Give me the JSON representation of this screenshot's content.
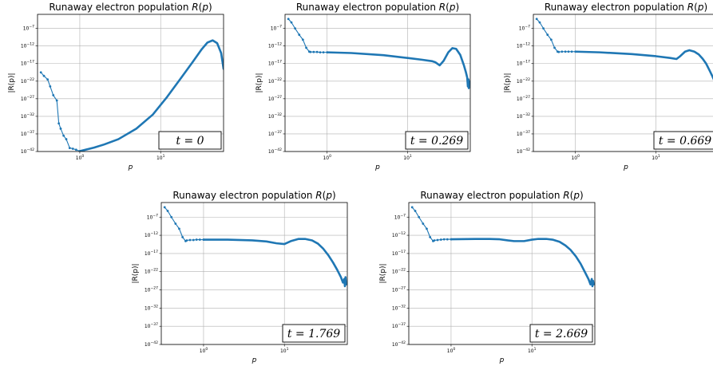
{
  "chart_data": [
    {
      "type": "line",
      "title": "Runaway electron population R(p)",
      "xlabel": "p",
      "ylabel": "|R(p)|",
      "xscale": "log",
      "yscale": "log",
      "xlim": [
        0.3,
        60
      ],
      "ylim": [
        1e-42,
        0.001
      ],
      "x_ticks": [
        "10^0",
        "10^1"
      ],
      "y_ticks": [
        "10^-7",
        "10^-12",
        "10^-17",
        "10^-22",
        "10^-27",
        "10^-32",
        "10^-37",
        "10^-42"
      ],
      "grid": true,
      "annotation": "t = 0",
      "color": "#1f77b4",
      "series": [
        {
          "x": [
            0.33,
            0.36,
            0.4,
            0.43,
            0.47,
            0.52,
            0.55,
            0.58,
            0.63,
            0.68,
            0.75,
            0.82,
            0.9,
            1.0
          ],
          "log10_y": [
            -19.5,
            -20.5,
            -21.5,
            -23.5,
            -26,
            -27.5,
            -34,
            -35.5,
            -37.5,
            -38.5,
            -41,
            -41.2,
            -41.5,
            -41.9
          ]
        },
        {
          "x": [
            1.0,
            1.5,
            2,
            3,
            5,
            8,
            12,
            18,
            25,
            32,
            38,
            44,
            50,
            56,
            60
          ],
          "log10_y": [
            -41.9,
            -40.9,
            -40,
            -38.5,
            -35.5,
            -31.5,
            -26.5,
            -21,
            -16.5,
            -13,
            -11,
            -10.4,
            -11.2,
            -14,
            -18.5
          ]
        }
      ]
    },
    {
      "type": "line",
      "title": "Runaway electron population R(p)",
      "xlabel": "p",
      "ylabel": "|R(p)|",
      "xscale": "log",
      "yscale": "log",
      "xlim": [
        0.3,
        60
      ],
      "ylim": [
        1e-42,
        0.001
      ],
      "x_ticks": [
        "10^0",
        "10^1"
      ],
      "y_ticks": [
        "10^-7",
        "10^-12",
        "10^-17",
        "10^-22",
        "10^-27",
        "10^-32",
        "10^-37",
        "10^-42"
      ],
      "grid": true,
      "annotation": "t = 0.269",
      "color": "#1f77b4",
      "series": [
        {
          "x": [
            0.33,
            0.36,
            0.4,
            0.45,
            0.5,
            0.55,
            0.6,
            0.62,
            0.68,
            0.75,
            0.82,
            0.9,
            1.0
          ],
          "log10_y": [
            -4.3,
            -5.3,
            -7,
            -8.8,
            -10.2,
            -12.5,
            -13.6,
            -13.7,
            -13.7,
            -13.7,
            -13.8,
            -13.8,
            -13.8
          ]
        },
        {
          "x": [
            1.0,
            2,
            5,
            10,
            15,
            20,
            22,
            25,
            28,
            32,
            36,
            40,
            45,
            50,
            53,
            55,
            56,
            57,
            57.5,
            58
          ],
          "log10_y": [
            -13.8,
            -14,
            -14.6,
            -15.4,
            -15.9,
            -16.3,
            -16.6,
            -17.5,
            -16.2,
            -13.8,
            -12.6,
            -12.8,
            -14.5,
            -17.5,
            -19.5,
            -21,
            -23.5,
            -21.5,
            -24,
            -22
          ]
        }
      ]
    },
    {
      "type": "line",
      "title": "Runaway electron population R(p)",
      "xlabel": "p",
      "ylabel": "|R(p)|",
      "xscale": "log",
      "yscale": "log",
      "xlim": [
        0.3,
        60
      ],
      "ylim": [
        1e-42,
        0.001
      ],
      "x_ticks": [
        "10^0",
        "10^1"
      ],
      "y_ticks": [
        "10^-7",
        "10^-12",
        "10^-17",
        "10^-22",
        "10^-27",
        "10^-32",
        "10^-37",
        "10^-42"
      ],
      "grid": true,
      "annotation": "t = 0.669",
      "color": "#1f77b4",
      "series": [
        {
          "x": [
            0.33,
            0.36,
            0.4,
            0.45,
            0.5,
            0.55,
            0.6,
            0.62,
            0.68,
            0.75,
            0.82,
            0.9,
            1.0
          ],
          "log10_y": [
            -4.3,
            -5.3,
            -7,
            -8.8,
            -10.2,
            -12.5,
            -13.6,
            -13.7,
            -13.6,
            -13.6,
            -13.6,
            -13.6,
            -13.6
          ]
        },
        {
          "x": [
            1.0,
            2,
            5,
            10,
            15,
            18,
            20,
            23,
            26,
            30,
            34,
            38,
            42,
            46,
            50,
            53,
            55,
            56,
            57,
            58
          ],
          "log10_y": [
            -13.6,
            -13.8,
            -14.3,
            -14.9,
            -15.4,
            -15.7,
            -14.9,
            -13.6,
            -13.2,
            -13.6,
            -14.4,
            -15.6,
            -17,
            -18.8,
            -20.5,
            -21.8,
            -23,
            -24.5,
            -22.5,
            -23.5
          ]
        }
      ]
    },
    {
      "type": "line",
      "title": "Runaway electron population R(p)",
      "xlabel": "p",
      "ylabel": "|R(p)|",
      "xscale": "log",
      "yscale": "log",
      "xlim": [
        0.3,
        60
      ],
      "ylim": [
        1e-42,
        0.001
      ],
      "x_ticks": [
        "10^0",
        "10^1"
      ],
      "y_ticks": [
        "10^-7",
        "10^-12",
        "10^-17",
        "10^-22",
        "10^-27",
        "10^-32",
        "10^-37",
        "10^-42"
      ],
      "grid": true,
      "annotation": "t = 1.769",
      "color": "#1f77b4",
      "series": [
        {
          "x": [
            0.33,
            0.36,
            0.4,
            0.45,
            0.5,
            0.55,
            0.6,
            0.62,
            0.68,
            0.75,
            0.82,
            0.9,
            1.0
          ],
          "log10_y": [
            -4.3,
            -5.3,
            -7,
            -8.8,
            -10.2,
            -12.5,
            -13.6,
            -13.4,
            -13.3,
            -13.3,
            -13.2,
            -13.2,
            -13.2
          ]
        },
        {
          "x": [
            1.0,
            2,
            4,
            6,
            8,
            10,
            12,
            15,
            18,
            22,
            26,
            30,
            35,
            40,
            45,
            50,
            53,
            55,
            56,
            57,
            58
          ],
          "log10_y": [
            -13.2,
            -13.2,
            -13.4,
            -13.7,
            -14.2,
            -14.4,
            -13.6,
            -13,
            -13,
            -13.4,
            -14.3,
            -15.6,
            -17.5,
            -19.5,
            -21.5,
            -23.5,
            -25,
            -24,
            -26,
            -23.5,
            -25.5
          ]
        }
      ]
    },
    {
      "type": "line",
      "title": "Runaway electron population R(p)",
      "xlabel": "p",
      "ylabel": "|R(p)|",
      "xscale": "log",
      "yscale": "log",
      "xlim": [
        0.3,
        60
      ],
      "ylim": [
        1e-42,
        0.001
      ],
      "x_ticks": [
        "10^0",
        "10^1"
      ],
      "y_ticks": [
        "10^-7",
        "10^-12",
        "10^-17",
        "10^-22",
        "10^-27",
        "10^-32",
        "10^-37",
        "10^-42"
      ],
      "grid": true,
      "annotation": "t = 2.669",
      "color": "#1f77b4",
      "series": [
        {
          "x": [
            0.33,
            0.36,
            0.4,
            0.45,
            0.5,
            0.55,
            0.6,
            0.62,
            0.68,
            0.75,
            0.82,
            0.9,
            1.0
          ],
          "log10_y": [
            -4.3,
            -5.3,
            -7,
            -8.8,
            -10.2,
            -12.5,
            -13.6,
            -13.4,
            -13.3,
            -13.2,
            -13.1,
            -13.1,
            -13.1
          ]
        },
        {
          "x": [
            1.0,
            2,
            3,
            4,
            5,
            6,
            8,
            10,
            12,
            15,
            18,
            22,
            26,
            30,
            35,
            40,
            45,
            50,
            53,
            55,
            56,
            57,
            58
          ],
          "log10_y": [
            -13.1,
            -13,
            -13,
            -13.1,
            -13.4,
            -13.6,
            -13.6,
            -13.2,
            -13,
            -13,
            -13.2,
            -13.8,
            -14.8,
            -16,
            -17.8,
            -19.8,
            -22,
            -24,
            -25.5,
            -24,
            -26,
            -24.5,
            -25.5
          ]
        }
      ]
    }
  ]
}
